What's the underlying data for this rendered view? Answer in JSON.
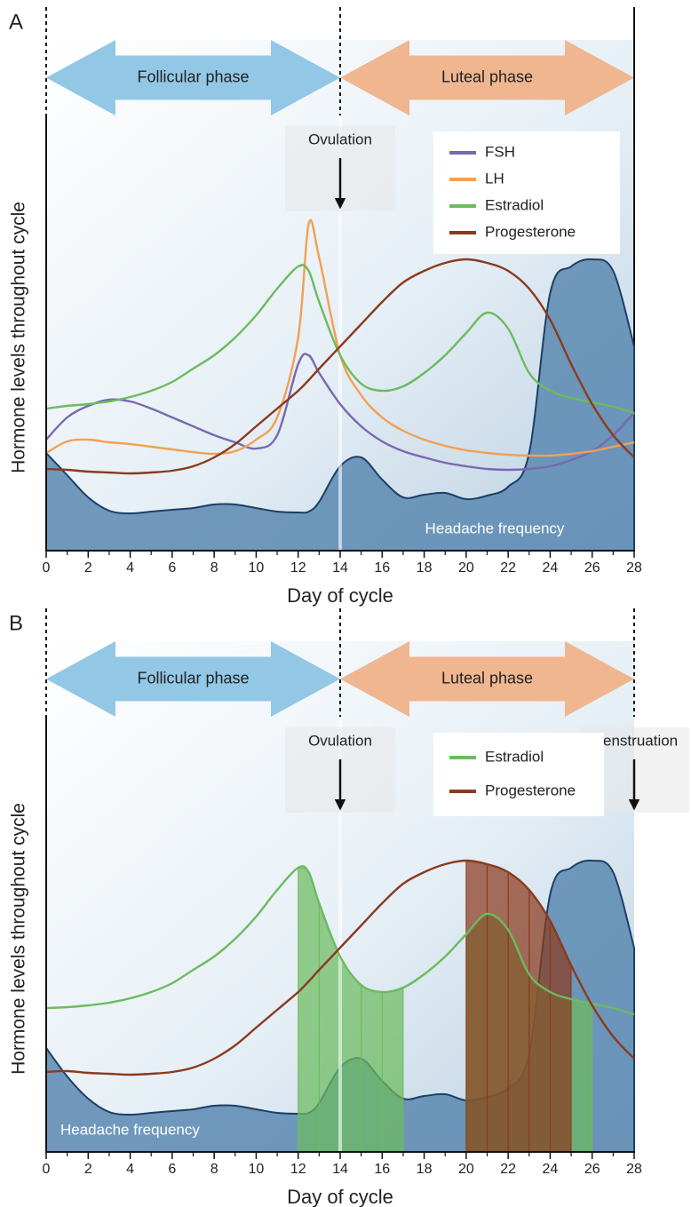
{
  "chart_data": [
    {
      "type": "line",
      "panel_label": "A",
      "xlabel": "Day of cycle",
      "ylabel": "Hormone levels throughout cycle",
      "xlim": [
        0,
        28
      ],
      "ylim": [
        0,
        100
      ],
      "xticks": [
        0,
        2,
        4,
        6,
        8,
        10,
        12,
        14,
        16,
        18,
        20,
        22,
        24,
        26,
        28
      ],
      "xminor_ticks": [
        1,
        3,
        5,
        7,
        9,
        11,
        13,
        15,
        17,
        19,
        21,
        23,
        25,
        27
      ],
      "end_line_style": "solid",
      "legend_corner": "upper right",
      "area_label_corner": "lower right",
      "phases": [
        {
          "label": "Follicular phase",
          "from": 0,
          "to": 14,
          "color": "#93c7e6"
        },
        {
          "label": "Luteal phase",
          "from": 14,
          "to": 28,
          "color": "#efb690"
        }
      ],
      "annotations": [
        {
          "text": "Ovulation",
          "x": 14
        }
      ],
      "x": [
        0,
        1,
        2,
        3,
        4,
        5,
        6,
        7,
        8,
        9,
        10,
        11,
        12,
        12.5,
        13,
        14,
        15,
        16,
        17,
        18,
        19,
        20,
        21,
        22,
        23,
        24,
        25,
        26,
        27,
        28
      ],
      "area_series": {
        "name": "Headache frequency",
        "color": "#5a88b2",
        "values": [
          22,
          17,
          12,
          9,
          8.4,
          8.8,
          9.2,
          9.6,
          10.4,
          10.4,
          9.6,
          8.8,
          8.6,
          8.8,
          11,
          19,
          21,
          16,
          12,
          12.6,
          13,
          11.6,
          12.4,
          14.4,
          22,
          58,
          64,
          65.6,
          63,
          46
        ]
      },
      "series": [
        {
          "name": "FSH",
          "color": "#7a68b0",
          "values": [
            25,
            30,
            32.6,
            34,
            33.6,
            32,
            30,
            28,
            26,
            24.4,
            23,
            26,
            42,
            44,
            40,
            33,
            28,
            24.6,
            22.4,
            21,
            19.8,
            19,
            18.4,
            18.2,
            18.4,
            19,
            20.4,
            22.4,
            26,
            31
          ]
        },
        {
          "name": "LH",
          "color": "#f2a052",
          "values": [
            22,
            24.6,
            25,
            24.4,
            24,
            23.4,
            22.8,
            22.2,
            21.8,
            22.4,
            25,
            30,
            48,
            73.6,
            66,
            44,
            35,
            30,
            27,
            25,
            23.6,
            22.6,
            22,
            21.6,
            21.4,
            21.4,
            21.8,
            22.4,
            23.4,
            24.4
          ]
        },
        {
          "name": "Estradiol",
          "color": "#6cbb5e",
          "values": [
            32,
            32.6,
            33,
            33.6,
            34.6,
            36,
            38,
            41,
            44,
            48,
            53,
            59,
            64,
            63,
            56,
            44,
            37.6,
            36,
            37,
            40,
            44,
            49,
            53.6,
            50,
            40,
            36,
            34.4,
            33.4,
            32.4,
            31
          ]
        },
        {
          "name": "Progesterone",
          "color": "#8a3a1e",
          "values": [
            18.4,
            18.2,
            17.8,
            17.6,
            17.4,
            17.6,
            18,
            19,
            21,
            24,
            28,
            32,
            36,
            38.4,
            41,
            46,
            51,
            56,
            60.4,
            63,
            64.8,
            65.6,
            64.8,
            63,
            59,
            52,
            42,
            33,
            26,
            21
          ]
        }
      ]
    },
    {
      "type": "line",
      "panel_label": "B",
      "xlabel": "Day of cycle",
      "ylabel": "Hormone levels throughout cycle",
      "xlim": [
        0,
        28
      ],
      "ylim": [
        0,
        100
      ],
      "xticks": [
        0,
        2,
        4,
        6,
        8,
        10,
        12,
        14,
        16,
        18,
        20,
        22,
        24,
        26,
        28
      ],
      "xminor_ticks": [
        1,
        3,
        5,
        7,
        9,
        11,
        13,
        15,
        17,
        19,
        21,
        23,
        25,
        27
      ],
      "end_line_style": "dashed",
      "legend_corner": "upper right",
      "area_label_corner": "lower left",
      "phases": [
        {
          "label": "Follicular phase",
          "from": 0,
          "to": 14,
          "color": "#93c7e6"
        },
        {
          "label": "Luteal phase",
          "from": 14,
          "to": 28,
          "color": "#efb690"
        }
      ],
      "annotations": [
        {
          "text": "Ovulation",
          "x": 14
        },
        {
          "text": "Menstruation",
          "x": 28
        }
      ],
      "x": [
        0,
        1,
        2,
        3,
        4,
        5,
        6,
        7,
        8,
        9,
        10,
        11,
        12,
        12.5,
        13,
        14,
        15,
        16,
        17,
        18,
        19,
        20,
        21,
        22,
        23,
        24,
        25,
        26,
        27,
        28
      ],
      "area_series": {
        "name": "Headache frequency",
        "color": "#5a88b2",
        "values": [
          23.4,
          17,
          12,
          9,
          8.4,
          8.8,
          9.2,
          9.6,
          10.4,
          10.4,
          9.6,
          8.8,
          8.6,
          8.8,
          11,
          19,
          21,
          16,
          12,
          12.6,
          13,
          11.6,
          12.4,
          14.4,
          22,
          58,
          64,
          65.6,
          63,
          46
        ]
      },
      "series": [
        {
          "name": "Estradiol",
          "color": "#6cbb5e",
          "values": [
            32.4,
            32.6,
            33,
            33.6,
            34.6,
            36,
            38,
            41,
            44,
            48,
            53,
            59,
            64,
            63,
            56,
            44,
            37.6,
            36,
            37,
            40,
            44,
            49,
            53.6,
            50,
            40,
            36,
            34.4,
            33.4,
            32.4,
            31
          ]
        },
        {
          "name": "Progesterone",
          "color": "#8a3a1e",
          "values": [
            18,
            18.2,
            17.8,
            17.6,
            17.4,
            17.6,
            18,
            19,
            21,
            24,
            28,
            32,
            36,
            38.4,
            41,
            46,
            51,
            56,
            60.4,
            63,
            64.8,
            65.6,
            64.8,
            63,
            59,
            52,
            42,
            33,
            26,
            21
          ]
        }
      ],
      "shaded": [
        {
          "series": 0,
          "from": 12,
          "to": 17
        },
        {
          "series": 0,
          "from": 20,
          "to": 26
        },
        {
          "series": 1,
          "from": 20,
          "to": 25
        }
      ]
    }
  ]
}
